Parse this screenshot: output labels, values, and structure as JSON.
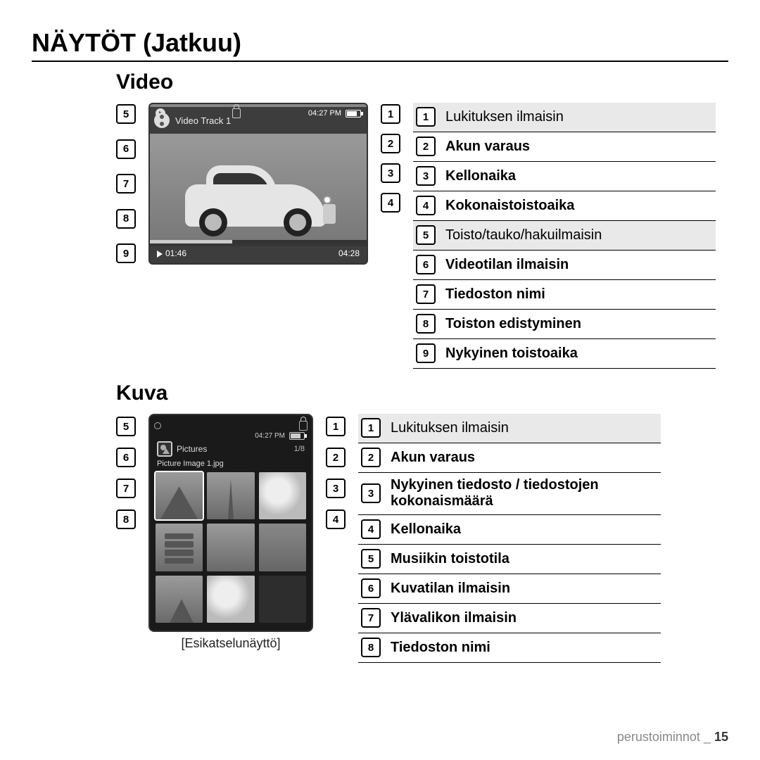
{
  "page": {
    "title": "NÄYTÖT (Jatkuu)",
    "footer_section": "perustoiminnot",
    "footer_sep": "_",
    "page_number": "15"
  },
  "video": {
    "section_title": "Video",
    "screen": {
      "track_title": "Video Track 1",
      "clock": "04:27 PM",
      "current_time": "01:46",
      "total_time": "04:28"
    },
    "left_callouts": [
      "5",
      "6",
      "7",
      "8",
      "9"
    ],
    "right_callouts": [
      "1",
      "2",
      "3",
      "4"
    ],
    "legend": [
      {
        "n": "1",
        "label": "Lukituksen ilmaisin",
        "bold": false,
        "shaded": true
      },
      {
        "n": "2",
        "label": "Akun varaus",
        "bold": true,
        "shaded": false
      },
      {
        "n": "3",
        "label": "Kellonaika",
        "bold": true,
        "shaded": false
      },
      {
        "n": "4",
        "label": "Kokonaistoistoaika",
        "bold": true,
        "shaded": false
      },
      {
        "n": "5",
        "label": "Toisto/tauko/hakuilmaisin",
        "bold": false,
        "shaded": true
      },
      {
        "n": "6",
        "label": "Videotilan ilmaisin",
        "bold": true,
        "shaded": false
      },
      {
        "n": "7",
        "label": "Tiedoston nimi",
        "bold": true,
        "shaded": false
      },
      {
        "n": "8",
        "label": "Toiston edistyminen",
        "bold": true,
        "shaded": false
      },
      {
        "n": "9",
        "label": "Nykyinen toistoaika",
        "bold": true,
        "shaded": false
      }
    ]
  },
  "picture": {
    "section_title": "Kuva",
    "caption": "[Esikatselunäyttö]",
    "screen": {
      "clock": "04:27 PM",
      "folder": "Pictures",
      "count": "1/8",
      "filename": "Picture Image 1.jpg"
    },
    "left_callouts": [
      "5",
      "6",
      "7",
      "8"
    ],
    "right_callouts": [
      "1",
      "2",
      "3",
      "4"
    ],
    "legend": [
      {
        "n": "1",
        "label": "Lukituksen ilmaisin",
        "bold": false,
        "shaded": true
      },
      {
        "n": "2",
        "label": "Akun varaus",
        "bold": true,
        "shaded": false
      },
      {
        "n": "3",
        "label": "Nykyinen tiedosto / tiedostojen kokonaismäärä",
        "bold": true,
        "shaded": false
      },
      {
        "n": "4",
        "label": "Kellonaika",
        "bold": true,
        "shaded": false
      },
      {
        "n": "5",
        "label": "Musiikin toistotila",
        "bold": true,
        "shaded": false
      },
      {
        "n": "6",
        "label": "Kuvatilan ilmaisin",
        "bold": true,
        "shaded": false
      },
      {
        "n": "7",
        "label": "Ylävalikon ilmaisin",
        "bold": true,
        "shaded": false
      },
      {
        "n": "8",
        "label": "Tiedoston nimi",
        "bold": true,
        "shaded": false
      }
    ]
  }
}
